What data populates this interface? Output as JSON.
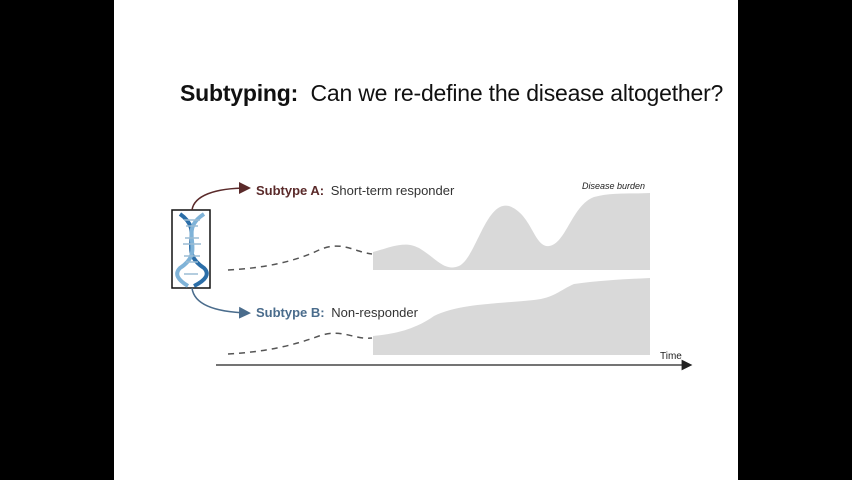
{
  "slide": {
    "title_bold": "Subtyping:",
    "title_rest": "Can we re-define the disease altogether?"
  },
  "diagram": {
    "subtype_a": {
      "name": "Subtype A:",
      "description": "Short-term responder",
      "color": "#5a2a2a"
    },
    "subtype_b": {
      "name": "Subtype B:",
      "description": "Non-responder",
      "color": "#4a6c8c"
    },
    "disease_burden_label": "Disease burden",
    "time_label": "Time",
    "burden_fill_color": "#d9d9d9",
    "dna_icon": "dna-helix-icon"
  }
}
